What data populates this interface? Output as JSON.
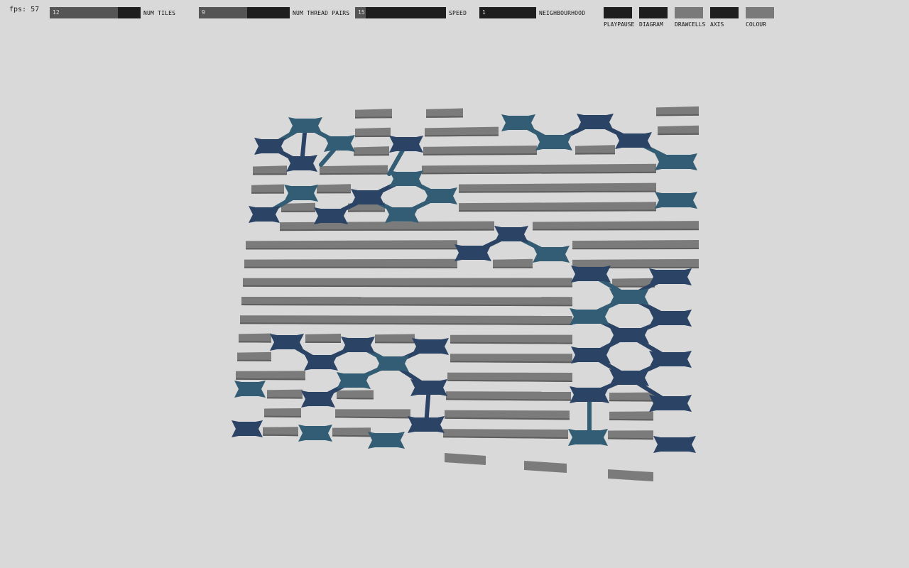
{
  "fps": {
    "label": "fps: 57"
  },
  "sliders": [
    {
      "label": "NUM TILES",
      "value": "12",
      "fraction": 0.75
    },
    {
      "label": "NUM THREAD PAIRS",
      "value": "9",
      "fraction": 0.53
    },
    {
      "label": "SPEED",
      "value": "15",
      "fraction": 0.12
    },
    {
      "label": "NEIGHBOURHOOD",
      "value": "1",
      "fraction": 0.0
    }
  ],
  "toggles": [
    {
      "label": "PLAYPAUSE",
      "on": false
    },
    {
      "label": "DIAGRAM",
      "on": false
    },
    {
      "label": "DRAWCELLS",
      "on": true
    },
    {
      "label": "AXIS",
      "on": false
    },
    {
      "label": "COLOUR",
      "on": true
    }
  ],
  "colors": {
    "background": "#d9d9d9",
    "toggle_off": "#1e1e1e",
    "toggle_on": "#7a7a7a",
    "thread": "#7b7b7b",
    "thread_shade": "#5e5e5e",
    "cross_dark": "#2b4365",
    "cross_teal": "#335d74"
  }
}
